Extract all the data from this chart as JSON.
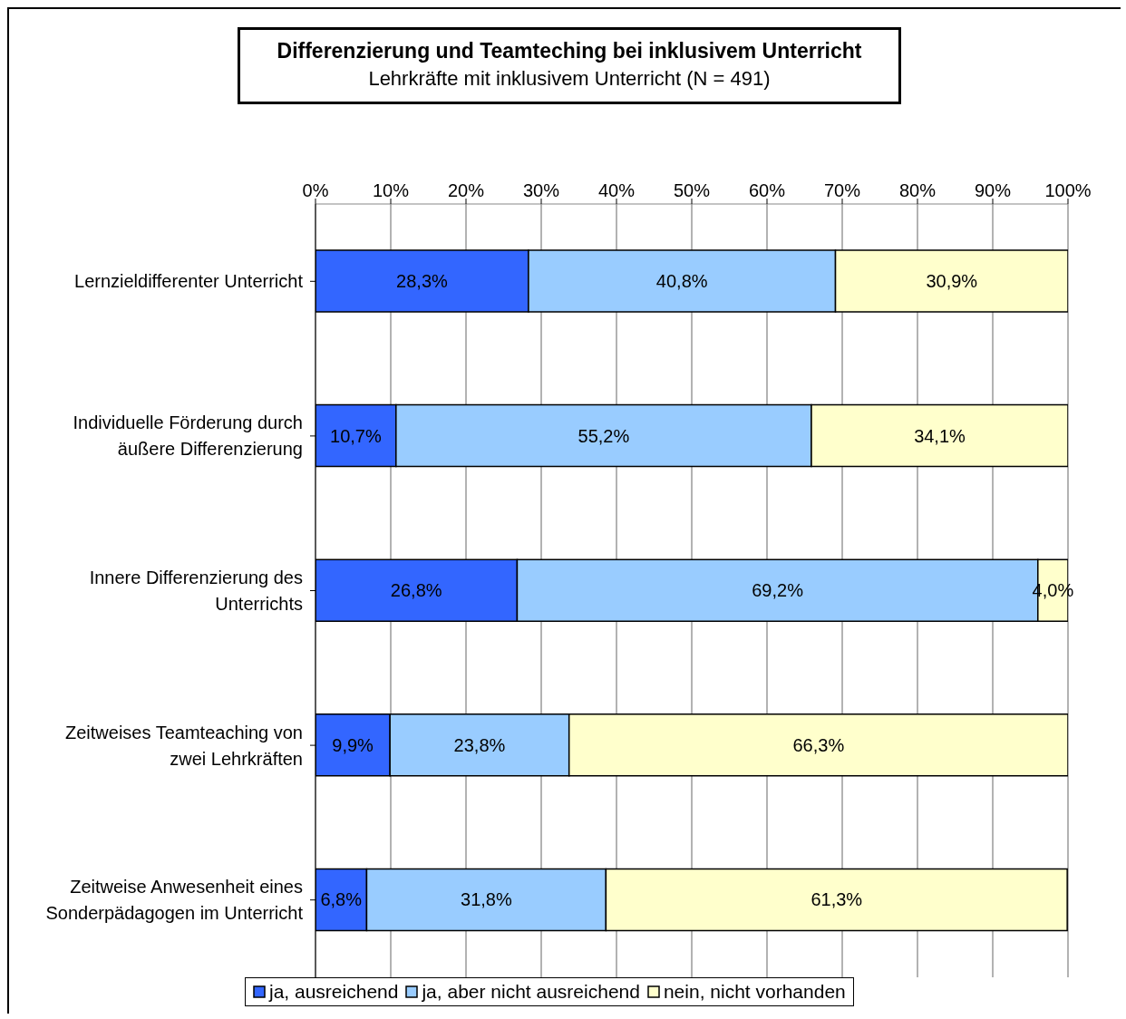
{
  "chart_data": {
    "type": "bar",
    "orientation": "horizontal",
    "stacked": true,
    "title": "Differenzierung und Teamteching bei inklusivem Unterricht",
    "subtitle": "Lehrkräfte mit inklusivem Unterricht (N = 491)",
    "categories": [
      "Lernzieldifferenter Unterricht",
      "Individuelle Förderung durch äußere Differenzierung",
      "Innere Differenzierung des Unterrichts",
      "Zeitweises Teamteaching von zwei Lehrkräften",
      "Zeitweise Anwesenheit eines Sonderpädagogen im Unterricht"
    ],
    "series": [
      {
        "name": "ja, ausreichend",
        "color": "#3366ff",
        "values": [
          28.3,
          10.7,
          26.8,
          9.9,
          6.8
        ],
        "value_labels": [
          "28,3%",
          "10,7%",
          "26,8%",
          "9,9%",
          "6,8%"
        ]
      },
      {
        "name": "ja, aber nicht ausreichend",
        "color": "#99ccff",
        "values": [
          40.8,
          55.2,
          69.2,
          23.8,
          31.8
        ],
        "value_labels": [
          "40,8%",
          "55,2%",
          "69,2%",
          "23,8%",
          "31,8%"
        ]
      },
      {
        "name": "nein, nicht vorhanden",
        "color": "#ffffcc",
        "values": [
          30.9,
          34.1,
          4.0,
          66.3,
          61.3
        ],
        "value_labels": [
          "30,9%",
          "34,1%",
          "4,0%",
          "66,3%",
          "61,3%"
        ]
      }
    ],
    "xlim": [
      0,
      100
    ],
    "xticks": [
      {
        "value": 0,
        "label": "0%"
      },
      {
        "value": 10,
        "label": "10%"
      },
      {
        "value": 20,
        "label": "20%"
      },
      {
        "value": 30,
        "label": "30%"
      },
      {
        "value": 40,
        "label": "40%"
      },
      {
        "value": 50,
        "label": "50%"
      },
      {
        "value": 60,
        "label": "60%"
      },
      {
        "value": 70,
        "label": "70%"
      },
      {
        "value": 80,
        "label": "80%"
      },
      {
        "value": 90,
        "label": "90%"
      },
      {
        "value": 100,
        "label": "100%"
      }
    ],
    "grid": "x",
    "legend": "bottom"
  }
}
